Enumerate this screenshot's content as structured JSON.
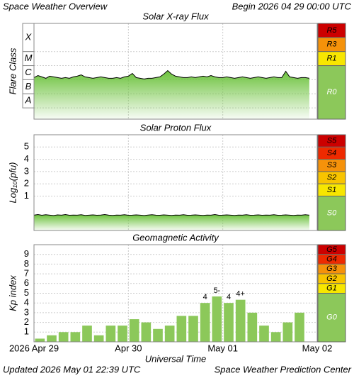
{
  "header": {
    "title": "Space Weather Overview",
    "begin": "Begin 2026 04 29 00:00 UTC",
    "updated": "Updated 2026 May 01 22:39 UTC",
    "source": "Space Weather Prediction Center"
  },
  "chart_data": [
    {
      "type": "line",
      "title": "Solar X-ray Flux",
      "ylabel": "Flare Class",
      "color": "#000000",
      "fill": "#6cc23c",
      "xlim": [
        0,
        72
      ],
      "ylim": [
        -8.8,
        -2
      ],
      "class_bands": [
        {
          "label": "X",
          "lo": -4,
          "hi": -2
        },
        {
          "label": "M",
          "lo": -5,
          "hi": -4
        },
        {
          "label": "C",
          "lo": -6,
          "hi": -5
        },
        {
          "label": "B",
          "lo": -7,
          "hi": -6
        },
        {
          "label": "A",
          "lo": -8,
          "hi": -7
        }
      ],
      "scale": [
        {
          "label": "R5",
          "lo": -3,
          "hi": -2,
          "color": "#cc0000"
        },
        {
          "label": "R3",
          "lo": -4,
          "hi": -3,
          "color": "#f5920a"
        },
        {
          "label": "R1",
          "lo": -5,
          "hi": -4,
          "color": "#f7e600"
        },
        {
          "label": "R0",
          "lo": -8.8,
          "hi": -5,
          "color": "#8cc85a"
        }
      ],
      "x": [
        0,
        1,
        2,
        3,
        4,
        5,
        6,
        7,
        8,
        9,
        10,
        11,
        12,
        13,
        14,
        15,
        16,
        17,
        18,
        19,
        20,
        21,
        22,
        23,
        24,
        25,
        26,
        27,
        28,
        29,
        30,
        31,
        32,
        33,
        34,
        35,
        36,
        37,
        38,
        39,
        40,
        41,
        42,
        43,
        44,
        45,
        46,
        47,
        48,
        49,
        50,
        51,
        52,
        53,
        54,
        55,
        56,
        57,
        58,
        59,
        60,
        61,
        62,
        63,
        64,
        65,
        66,
        67,
        68,
        69,
        70
      ],
      "values": [
        -5.85,
        -5.7,
        -5.8,
        -5.9,
        -5.75,
        -5.8,
        -5.85,
        -5.9,
        -5.85,
        -5.9,
        -5.8,
        -5.75,
        -5.65,
        -5.8,
        -5.85,
        -5.9,
        -5.85,
        -5.8,
        -5.85,
        -5.9,
        -5.9,
        -5.85,
        -5.9,
        -5.8,
        -5.75,
        -5.55,
        -5.85,
        -5.9,
        -5.95,
        -5.9,
        -5.9,
        -5.85,
        -5.8,
        -5.6,
        -5.35,
        -5.6,
        -5.75,
        -5.8,
        -5.85,
        -5.85,
        -5.8,
        -5.85,
        -5.8,
        -5.75,
        -5.8,
        -5.7,
        -5.8,
        -5.85,
        -5.85,
        -5.8,
        -5.85,
        -5.9,
        -5.85,
        -5.8,
        -5.85,
        -5.9,
        -5.85,
        -5.8,
        -5.85,
        -5.9,
        -5.85,
        -5.8,
        -5.85,
        -5.85,
        -5.4,
        -5.8,
        -5.85,
        -5.9,
        -5.85,
        -5.85,
        -5.9
      ]
    },
    {
      "type": "line",
      "title": "Solar Proton Flux",
      "ylabel": "Log₁₀(pfu)",
      "color": "#000000",
      "fill": "#6cc23c",
      "xlim": [
        0,
        72
      ],
      "ylim": [
        -1.8,
        6
      ],
      "yticks": [
        1,
        2,
        3,
        4,
        5
      ],
      "scale": [
        {
          "label": "S5",
          "lo": 5,
          "hi": 6,
          "color": "#cc0000"
        },
        {
          "label": "S4",
          "lo": 4,
          "hi": 5,
          "color": "#ee2a00"
        },
        {
          "label": "S3",
          "lo": 3,
          "hi": 4,
          "color": "#f5920a"
        },
        {
          "label": "S2",
          "lo": 2,
          "hi": 3,
          "color": "#f8c400"
        },
        {
          "label": "S1",
          "lo": 1,
          "hi": 2,
          "color": "#f7e600"
        },
        {
          "label": "S0",
          "lo": -1.8,
          "hi": 1,
          "color": "#8cc85a"
        }
      ],
      "x": [
        0,
        1,
        2,
        3,
        4,
        5,
        6,
        7,
        8,
        9,
        10,
        11,
        12,
        13,
        14,
        15,
        16,
        17,
        18,
        19,
        20,
        21,
        22,
        23,
        24,
        25,
        26,
        27,
        28,
        29,
        30,
        31,
        32,
        33,
        34,
        35,
        36,
        37,
        38,
        39,
        40,
        41,
        42,
        43,
        44,
        45,
        46,
        47,
        48,
        49,
        50,
        51,
        52,
        53,
        54,
        55,
        56,
        57,
        58,
        59,
        60,
        61,
        62,
        63,
        64,
        65,
        66,
        67,
        68,
        69,
        70
      ],
      "values": [
        -0.55,
        -0.5,
        -0.56,
        -0.52,
        -0.55,
        -0.58,
        -0.53,
        -0.55,
        -0.5,
        -0.56,
        -0.54,
        -0.55,
        -0.52,
        -0.57,
        -0.55,
        -0.53,
        -0.56,
        -0.54,
        -0.5,
        -0.55,
        -0.57,
        -0.54,
        -0.55,
        -0.52,
        -0.56,
        -0.55,
        -0.53,
        -0.55,
        -0.58,
        -0.54,
        -0.52,
        -0.55,
        -0.56,
        -0.53,
        -0.55,
        -0.57,
        -0.54,
        -0.55,
        -0.52,
        -0.56,
        -0.55,
        -0.53,
        -0.55,
        -0.57,
        -0.54,
        -0.55,
        -0.5,
        -0.56,
        -0.55,
        -0.53,
        -0.55,
        -0.57,
        -0.54,
        -0.55,
        -0.52,
        -0.56,
        -0.55,
        -0.53,
        -0.56,
        -0.54,
        -0.55,
        -0.52,
        -0.56,
        -0.55,
        -0.53,
        -0.55,
        -0.57,
        -0.54,
        -0.55,
        -0.52,
        -0.55
      ]
    },
    {
      "type": "bar",
      "title": "Geomagnetic Activity",
      "ylabel": "Kp index",
      "color": "#8cc85a",
      "xlabel": "Universal Time",
      "xlim": [
        0,
        72
      ],
      "ylim": [
        0,
        10
      ],
      "yticks": [
        1,
        2,
        3,
        4,
        5,
        6,
        7,
        8,
        9
      ],
      "xticks": [
        {
          "value": 0,
          "label": "2026 Apr 29"
        },
        {
          "value": 24,
          "label": "Apr 30"
        },
        {
          "value": 48,
          "label": "May 01"
        },
        {
          "value": 72,
          "label": "May 02"
        }
      ],
      "scale": [
        {
          "label": "G5",
          "lo": 9,
          "hi": 10,
          "color": "#cc0000"
        },
        {
          "label": "G4",
          "lo": 8,
          "hi": 9,
          "color": "#ee2a00"
        },
        {
          "label": "G3",
          "lo": 7,
          "hi": 8,
          "color": "#f5920a"
        },
        {
          "label": "G2",
          "lo": 6,
          "hi": 7,
          "color": "#f8c400"
        },
        {
          "label": "G1",
          "lo": 5,
          "hi": 6,
          "color": "#f7e600"
        },
        {
          "label": "G0",
          "lo": 0,
          "hi": 5,
          "color": "#8cc85a"
        }
      ],
      "x": [
        1.5,
        4.5,
        7.5,
        10.5,
        13.5,
        16.5,
        19.5,
        22.5,
        25.5,
        28.5,
        31.5,
        34.5,
        37.5,
        40.5,
        43.5,
        46.5,
        49.5,
        52.5,
        55.5,
        58.5,
        61.5,
        64.5,
        67.5
      ],
      "values": [
        0.33,
        0.67,
        1,
        1,
        1.67,
        0.67,
        1.67,
        1.67,
        2.33,
        2,
        1.33,
        1.67,
        2.67,
        2.67,
        4,
        4.67,
        4,
        4.33,
        3,
        1.67,
        1,
        2,
        3
      ],
      "value_labels": [
        null,
        null,
        null,
        null,
        null,
        null,
        null,
        null,
        null,
        null,
        null,
        null,
        null,
        null,
        "4",
        "5-",
        "4",
        "4+",
        null,
        null,
        null,
        null,
        null
      ]
    }
  ]
}
